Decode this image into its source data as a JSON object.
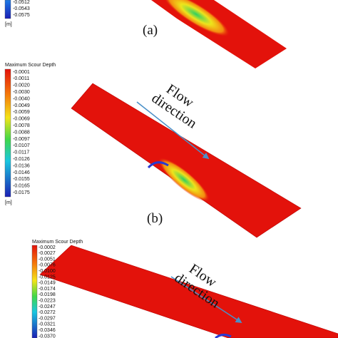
{
  "panels": [
    {
      "legend": {
        "labels": [
          "-0.0512",
          "-0.0543",
          "-0.0575"
        ],
        "unit": "[m]"
      },
      "caption": "(a)"
    },
    {
      "legend": {
        "title": "Maximum Scour Depth",
        "labels": [
          "-0.0001",
          "-0.0011",
          "-0.0020",
          "-0.0030",
          "-0.0040",
          "-0.0049",
          "-0.0059",
          "-0.0069",
          "-0.0078",
          "-0.0088",
          "-0.0097",
          "-0.0107",
          "-0.0117",
          "-0.0126",
          "-0.0136",
          "-0.0146",
          "-0.0155",
          "-0.0165",
          "-0.0175"
        ],
        "unit": "[m]"
      },
      "flow_label": [
        "Flow",
        "direction"
      ],
      "caption": "(b)"
    },
    {
      "legend": {
        "title": "Maximum Scour Depth",
        "labels": [
          "-0.0002",
          "-0.0027",
          "-0.0051",
          "-0.0076",
          "-0.0100",
          "-0.0125",
          "-0.0149",
          "-0.0174",
          "-0.0198",
          "-0.0223",
          "-0.0247",
          "-0.0272",
          "-0.0297",
          "-0.0321",
          "-0.0346",
          "-0.0370"
        ]
      },
      "flow_label": [
        "Flow",
        "direction"
      ]
    }
  ]
}
